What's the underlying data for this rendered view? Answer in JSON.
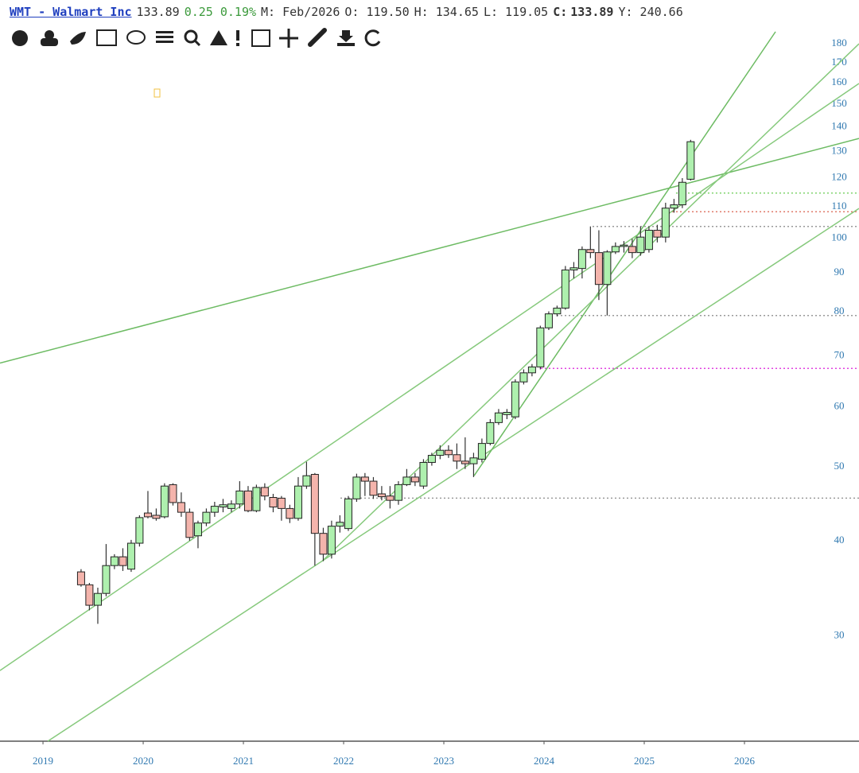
{
  "header": {
    "symbol": "WMT - Walmart Inc",
    "last": "133.89",
    "change": "0.25 0.19%",
    "period": "M: Feb/2026",
    "open": "O: 119.50",
    "high": "H: 134.65",
    "low": "L: 119.05",
    "close_label": "C:",
    "close": "133.89",
    "year": "Y: 240.66"
  },
  "chart_data": {
    "type": "candlestick",
    "log": true,
    "up_color": "#aef0ae",
    "down_color": "#f4b4ac",
    "x": [
      2019.38,
      2019.463,
      2019.547,
      2019.63,
      2019.713,
      2019.797,
      2019.88,
      2019.963,
      2020.047,
      2020.13,
      2020.213,
      2020.297,
      2020.38,
      2020.463,
      2020.547,
      2020.63,
      2020.713,
      2020.797,
      2020.88,
      2020.963,
      2021.047,
      2021.13,
      2021.213,
      2021.297,
      2021.38,
      2021.463,
      2021.547,
      2021.63,
      2021.713,
      2021.797,
      2021.88,
      2021.963,
      2022.047,
      2022.13,
      2022.213,
      2022.297,
      2022.38,
      2022.463,
      2022.547,
      2022.63,
      2022.713,
      2022.797,
      2022.88,
      2022.963,
      2023.047,
      2023.13,
      2023.213,
      2023.297,
      2023.38,
      2023.463,
      2023.547,
      2023.63,
      2023.713,
      2023.797,
      2023.88,
      2023.963,
      2024.047,
      2024.13,
      2024.213,
      2024.297,
      2024.38,
      2024.463,
      2024.547,
      2024.63,
      2024.713,
      2024.797,
      2024.88,
      2024.963,
      2025.047,
      2025.13,
      2025.213,
      2025.297,
      2025.38,
      2025.463
    ],
    "open": [
      36.4,
      35.0,
      32.9,
      34.1,
      37.1,
      38.1,
      36.7,
      39.7,
      43.5,
      43.2,
      43.0,
      47.4,
      44.9,
      43.6,
      40.6,
      42.2,
      43.6,
      44.3,
      44.1,
      44.7,
      46.5,
      43.8,
      47.0,
      45.6,
      45.5,
      44.1,
      42.8,
      47.2,
      48.9,
      40.9,
      38.4,
      41.8,
      41.5,
      45.4,
      48.5,
      47.9,
      46.1,
      45.8,
      45.2,
      47.4,
      48.5,
      47.2,
      50.7,
      51.8,
      52.6,
      51.9,
      50.9,
      50.5,
      51.2,
      53.7,
      57.2,
      58.6,
      58.2,
      64.7,
      66.5,
      67.7,
      76.2,
      79.5,
      80.9,
      90.8,
      91.2,
      96.6,
      95.7,
      86.9,
      95.9,
      97.5,
      97.5,
      95.7,
      96.6,
      102.4,
      100.3,
      109.5,
      110.6,
      119.5
    ],
    "high": [
      36.7,
      35.2,
      34.7,
      39.6,
      38.4,
      39.1,
      40.1,
      43.2,
      46.5,
      44.1,
      47.6,
      47.6,
      46.3,
      44.1,
      42.5,
      44.1,
      45.0,
      45.4,
      45.2,
      47.9,
      47.2,
      47.4,
      47.6,
      46.1,
      45.8,
      44.6,
      48.5,
      50.8,
      49.1,
      41.6,
      42.5,
      43.2,
      45.8,
      49.0,
      49.1,
      48.5,
      47.2,
      47.2,
      47.9,
      49.7,
      49.1,
      51.2,
      52.2,
      53.4,
      53.4,
      53.7,
      54.7,
      52.2,
      54.5,
      57.8,
      59.6,
      59.6,
      65.2,
      67.2,
      68.3,
      76.7,
      80.1,
      81.5,
      91.9,
      93.0,
      97.5,
      103.6,
      102.4,
      96.4,
      98.7,
      99.1,
      99.8,
      103.6,
      103.6,
      104.1,
      111.3,
      112.6,
      119.9,
      134.65
    ],
    "low": [
      34.8,
      32.4,
      31.1,
      33.8,
      36.7,
      36.5,
      36.4,
      39.3,
      42.8,
      42.5,
      42.8,
      44.5,
      43.0,
      40.0,
      39.1,
      41.8,
      43.0,
      43.6,
      43.6,
      44.1,
      43.6,
      43.6,
      45.2,
      43.6,
      42.5,
      42.2,
      42.5,
      46.8,
      37.1,
      37.6,
      37.9,
      41.0,
      41.2,
      45.0,
      45.8,
      45.4,
      45.2,
      44.1,
      44.6,
      47.2,
      47.2,
      46.8,
      50.2,
      51.2,
      51.4,
      49.7,
      49.7,
      48.5,
      50.7,
      53.4,
      56.8,
      57.8,
      57.8,
      64.2,
      65.8,
      67.2,
      75.7,
      78.9,
      80.5,
      88.5,
      88.5,
      94.1,
      82.9,
      79.1,
      95.3,
      95.7,
      94.1,
      94.8,
      95.7,
      98.7,
      98.7,
      108.0,
      109.5,
      119.05
    ],
    "close": [
      35.0,
      32.9,
      34.1,
      37.1,
      38.1,
      37.1,
      39.7,
      42.9,
      43.0,
      42.8,
      47.2,
      44.9,
      43.6,
      40.4,
      42.2,
      43.6,
      44.4,
      44.6,
      44.7,
      46.5,
      43.8,
      47.0,
      45.8,
      44.3,
      44.1,
      42.8,
      47.2,
      48.7,
      40.9,
      38.4,
      41.8,
      42.3,
      45.4,
      48.5,
      47.9,
      45.9,
      45.7,
      45.2,
      47.4,
      48.5,
      47.8,
      50.7,
      51.8,
      52.6,
      51.9,
      50.9,
      50.5,
      51.4,
      53.7,
      57.2,
      58.9,
      59.0,
      64.7,
      66.5,
      67.7,
      76.2,
      79.5,
      80.9,
      90.8,
      91.4,
      96.6,
      95.7,
      86.9,
      95.9,
      97.5,
      97.9,
      95.7,
      100.3,
      102.4,
      100.3,
      109.5,
      110.6,
      118.4,
      133.89
    ],
    "xlim": [
      2018.571,
      2027.143
    ],
    "xticks": [
      2019,
      2020,
      2021,
      2022,
      2023,
      2024,
      2025,
      2026
    ],
    "ylim": [
      21.8,
      189
    ],
    "yticks": [
      30,
      40,
      50,
      60,
      70,
      80,
      90,
      100,
      110,
      120,
      130,
      140,
      150,
      160,
      170,
      180
    ],
    "levels": [
      {
        "y": 114.6,
        "x_start": 2025.317,
        "color": "#7ed36b"
      },
      {
        "y": 108.3,
        "x_start": 2025.278,
        "color": "#e07a6a"
      },
      {
        "y": 103.6,
        "x_start": 2024.484,
        "color": "#999999"
      },
      {
        "y": 79.1,
        "x_start": 2024.127,
        "color": "#999999"
      },
      {
        "y": 67.4,
        "x_start": 2023.968,
        "color": "#e040e0"
      },
      {
        "y": 45.5,
        "x_start": 2021.968,
        "color": "#999999"
      }
    ],
    "trendlines": [
      {
        "x": [
          2018.571,
          2027.143
        ],
        "y": [
          68.5,
          135.2
        ],
        "color": "#6dbb63"
      },
      {
        "x": [
          2018.571,
          2027.143
        ],
        "y": [
          27.0,
          159.7
        ],
        "color": "#86c97c"
      },
      {
        "x": [
          2019.048,
          2027.143
        ],
        "y": [
          21.8,
          109.4
        ],
        "color": "#86c97c"
      },
      {
        "x": [
          2023.302,
          2026.31
        ],
        "y": [
          48.7,
          186.8
        ],
        "color": "#6dbb63"
      },
      {
        "x": [
          2021.786,
          2027.143
        ],
        "y": [
          37.6,
          180.1
        ],
        "color": "#86c97c"
      }
    ]
  }
}
